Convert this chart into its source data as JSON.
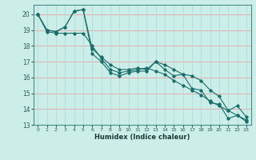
{
  "xlabel": "Humidex (Indice chaleur)",
  "background_color": "#cceee8",
  "grid_color_h": "#f0a0a0",
  "grid_color_v": "#aadddd",
  "line_color": "#1a6e6a",
  "xlim": [
    -0.5,
    23.5
  ],
  "ylim": [
    13,
    20.6
  ],
  "yticks": [
    13,
    14,
    15,
    16,
    17,
    18,
    19,
    20
  ],
  "xticks": [
    0,
    1,
    2,
    3,
    4,
    5,
    6,
    7,
    8,
    9,
    10,
    11,
    12,
    13,
    14,
    15,
    16,
    17,
    18,
    19,
    20,
    21,
    22,
    23
  ],
  "series": [
    [
      20.0,
      19.0,
      18.9,
      19.2,
      20.2,
      20.3,
      17.8,
      17.3,
      16.8,
      16.5,
      16.5,
      16.6,
      16.5,
      17.0,
      16.8,
      16.5,
      16.2,
      16.1,
      15.8,
      15.2,
      14.8,
      13.9,
      14.2,
      13.5
    ],
    [
      20.0,
      18.9,
      18.8,
      18.8,
      18.8,
      18.8,
      18.0,
      17.2,
      16.5,
      16.3,
      16.4,
      16.5,
      16.6,
      16.4,
      16.2,
      15.8,
      15.5,
      15.2,
      14.9,
      14.5,
      14.2,
      13.9,
      13.6,
      13.3
    ],
    [
      20.0,
      19.0,
      18.9,
      19.2,
      20.2,
      20.3,
      17.5,
      17.0,
      16.3,
      16.1,
      16.3,
      16.4,
      16.4,
      17.0,
      16.5,
      16.1,
      16.2,
      15.3,
      15.2,
      14.4,
      14.3,
      13.4,
      13.6,
      13.2
    ]
  ]
}
